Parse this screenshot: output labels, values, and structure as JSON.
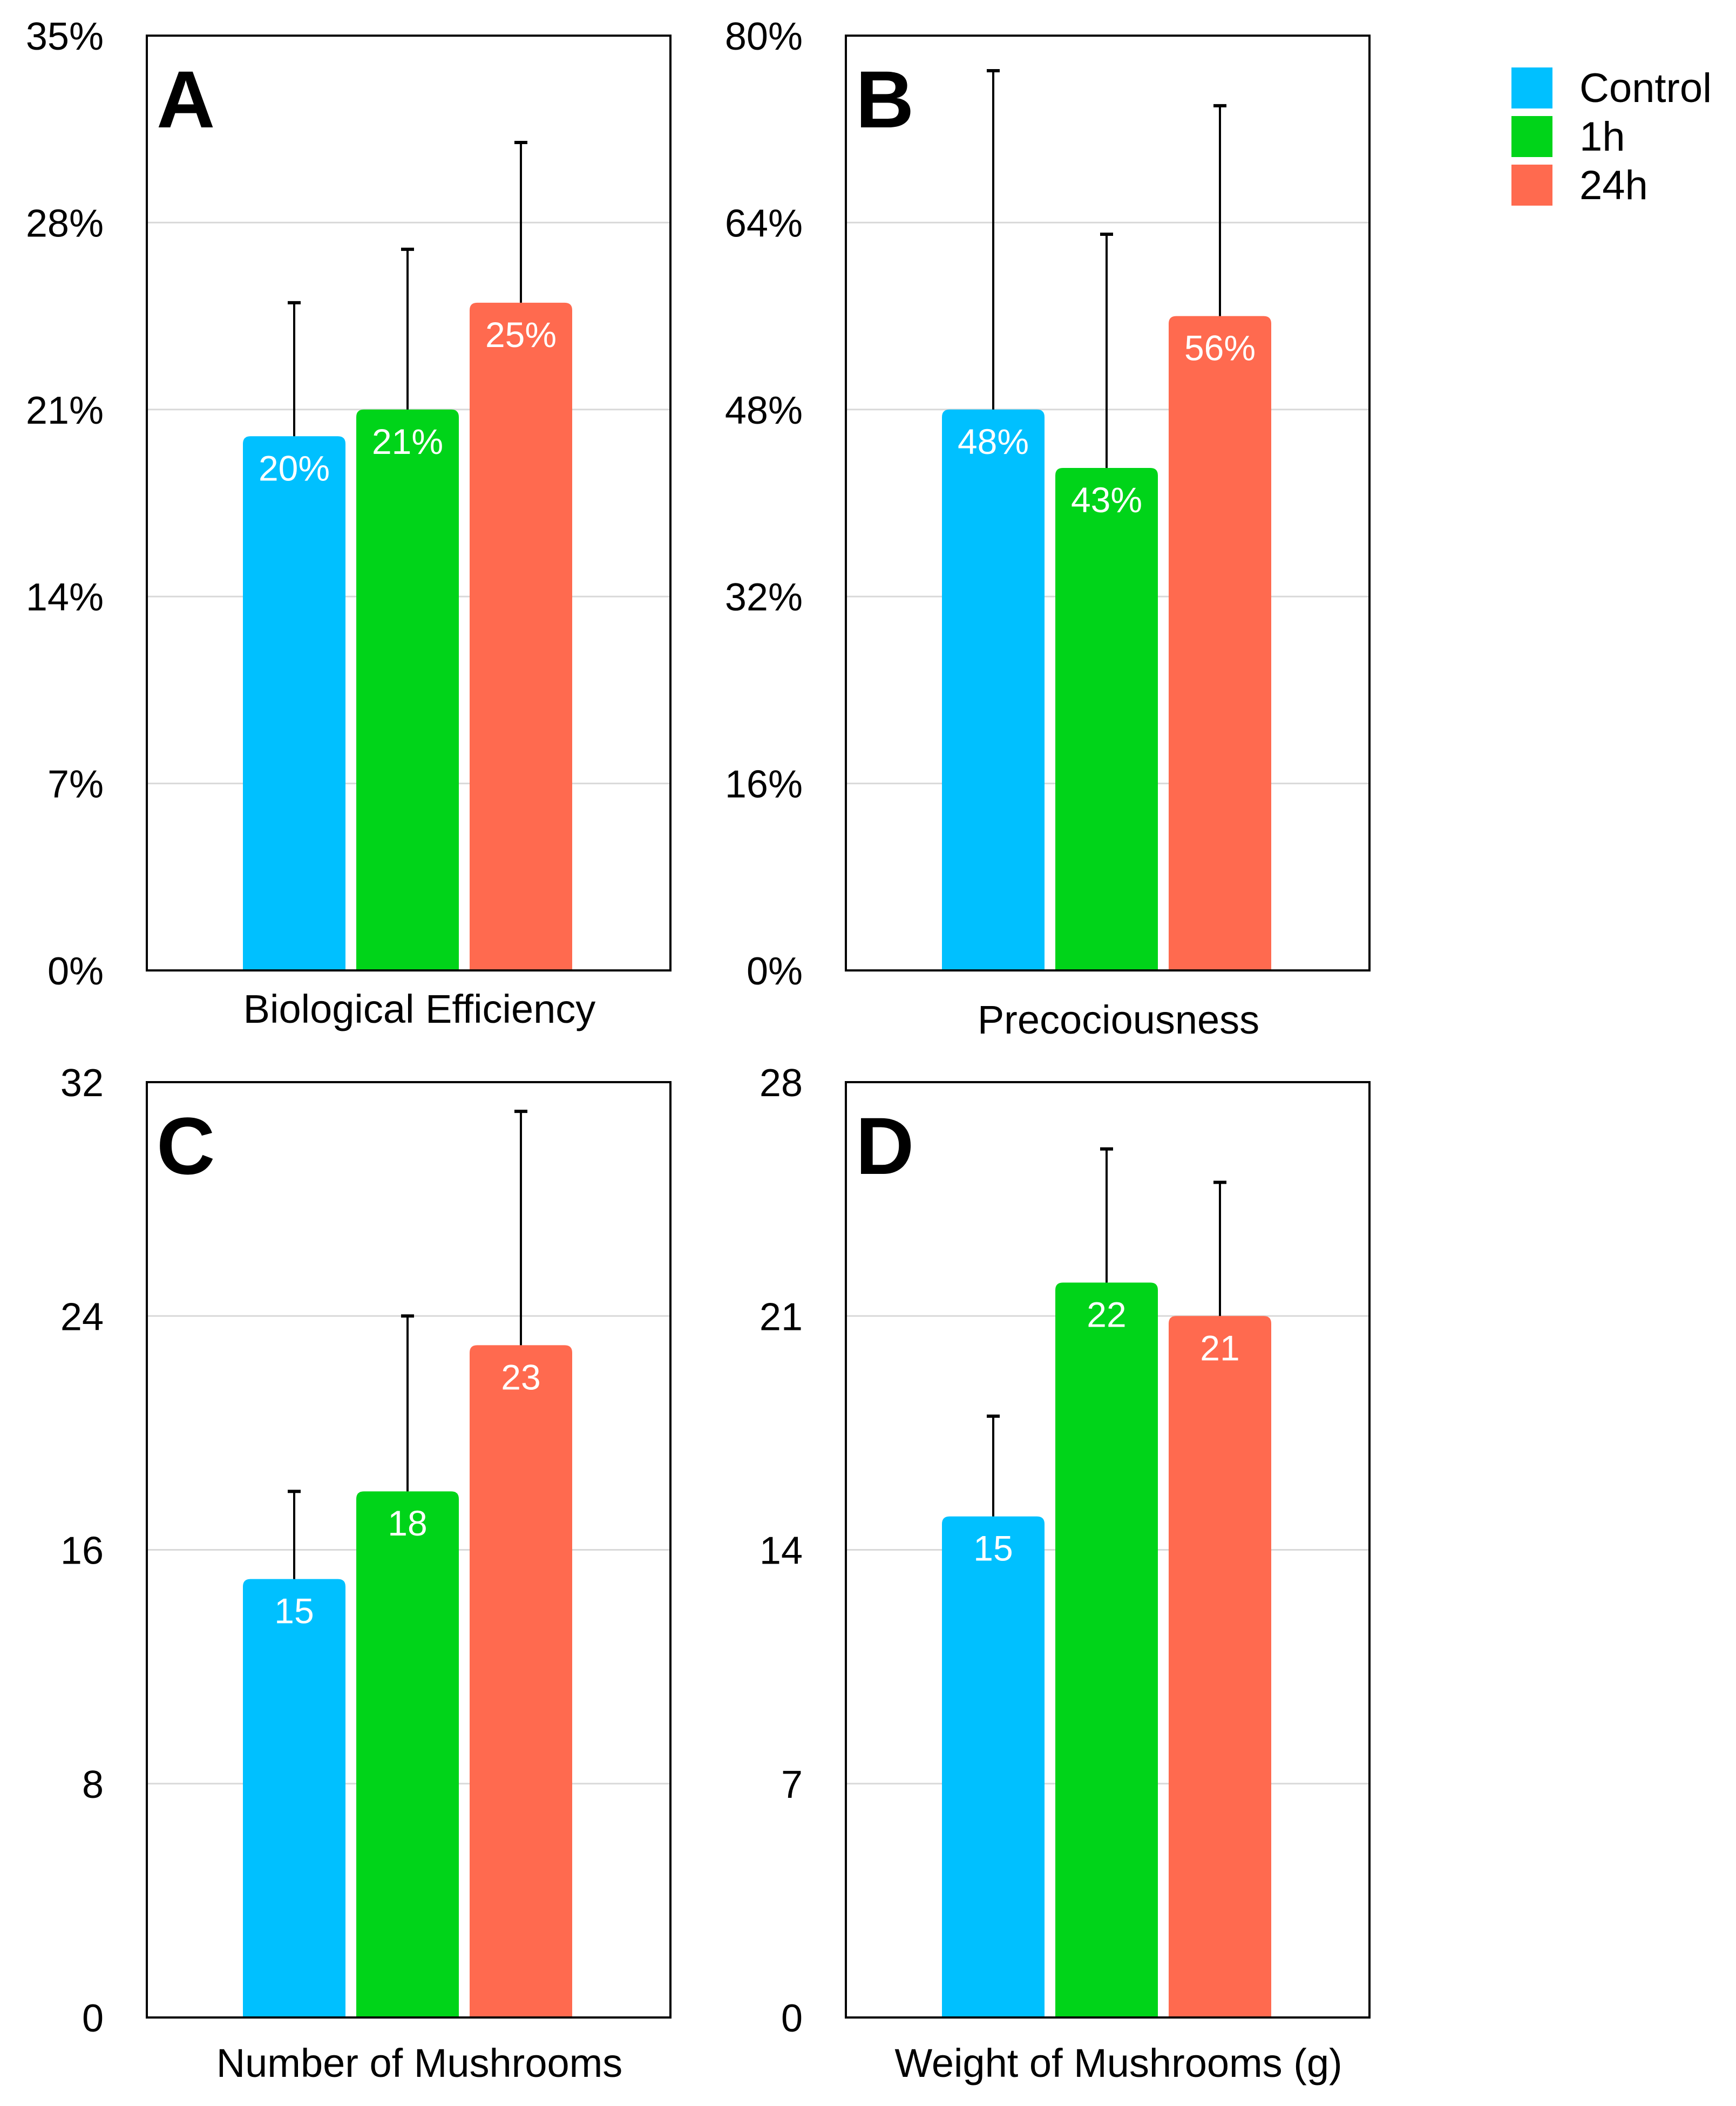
{
  "colors": {
    "Control": "#00c0ff",
    "1h": "#00d419",
    "24h": "#ff6a4f",
    "error_bar": "#000000",
    "grid": "#d9d9d9",
    "frame": "#000000"
  },
  "legend": {
    "position": "top-right",
    "items": [
      {
        "label": "Control",
        "color": "#00c0ff"
      },
      {
        "label": "1h",
        "color": "#00d419"
      },
      {
        "label": "24h",
        "color": "#ff6a4f"
      }
    ]
  },
  "chart_data": [
    {
      "type": "bar",
      "panel_letter": "A",
      "xlabel": "Biological Efficiency",
      "categories": [
        "Control",
        "1h",
        "24h"
      ],
      "values": [
        20,
        21,
        25
      ],
      "value_labels": [
        "20%",
        "21%",
        "25%"
      ],
      "error_upper": [
        25,
        27,
        31
      ],
      "ylim": [
        0,
        35
      ],
      "yticks": [
        0,
        7,
        14,
        21,
        28,
        35
      ],
      "ytick_labels": [
        "0%",
        "7%",
        "14%",
        "21%",
        "28%",
        "35%"
      ],
      "grid": true
    },
    {
      "type": "bar",
      "panel_letter": "B",
      "xlabel": "Precociousness",
      "categories": [
        "Control",
        "1h",
        "24h"
      ],
      "values": [
        48,
        43,
        56
      ],
      "value_labels": [
        "48%",
        "43%",
        "56%"
      ],
      "error_upper": [
        77,
        63,
        74
      ],
      "ylim": [
        0,
        80
      ],
      "yticks": [
        0,
        16,
        32,
        48,
        64,
        80
      ],
      "ytick_labels": [
        "0%",
        "16%",
        "32%",
        "48%",
        "64%",
        "80%"
      ],
      "grid": true
    },
    {
      "type": "bar",
      "panel_letter": "C",
      "xlabel": "Number of Mushrooms",
      "categories": [
        "Control",
        "1h",
        "24h"
      ],
      "values": [
        15,
        18,
        23
      ],
      "value_labels": [
        "15",
        "18",
        "23"
      ],
      "error_upper": [
        18,
        24,
        31
      ],
      "ylim": [
        0,
        32
      ],
      "yticks": [
        0,
        8,
        16,
        24,
        32
      ],
      "ytick_labels": [
        "0",
        "8",
        "16",
        "24",
        "32"
      ],
      "grid": true
    },
    {
      "type": "bar",
      "panel_letter": "D",
      "xlabel": "Weight of Mushrooms (g)",
      "categories": [
        "Control",
        "1h",
        "24h"
      ],
      "values": [
        15,
        22,
        21
      ],
      "value_labels": [
        "15",
        "22",
        "21"
      ],
      "error_upper": [
        18,
        26,
        25
      ],
      "ylim": [
        0,
        28
      ],
      "yticks": [
        0,
        7,
        14,
        21,
        28
      ],
      "ytick_labels": [
        "0",
        "7",
        "14",
        "21",
        "28"
      ],
      "grid": true
    }
  ]
}
